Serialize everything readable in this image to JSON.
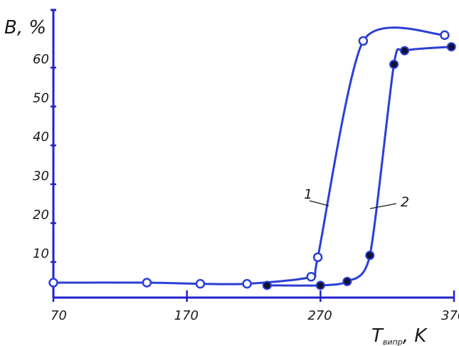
{
  "chart_data": {
    "type": "line",
    "title": "",
    "ylabel": "B, %",
    "xlabel": {
      "main": "T",
      "sub": "випр",
      "unit": ", K"
    },
    "xlim": [
      70,
      370
    ],
    "ylim": [
      0,
      70
    ],
    "x_ticks": [
      70,
      170,
      270,
      370
    ],
    "x_tick_labels": [
      "70",
      "170",
      "270",
      "370"
    ],
    "y_ticks": [
      10,
      20,
      30,
      40,
      50,
      60
    ],
    "y_tick_labels": [
      "10",
      "20",
      "30",
      "40",
      "50",
      "60"
    ],
    "grid": false,
    "legend": "none",
    "colors": {
      "axis": "#2222cc",
      "curve": "#2a3fd6",
      "text": "#1a1a1a",
      "marker_fill_2": "#111133"
    },
    "series": [
      {
        "name": "1",
        "marker": "open-circle",
        "points": [
          [
            70,
            3.5
          ],
          [
            140,
            3.5
          ],
          [
            180,
            3.2
          ],
          [
            215,
            3.2
          ],
          [
            263,
            5.0
          ],
          [
            268,
            10.0
          ],
          [
            302,
            65.5
          ],
          [
            363,
            67.0
          ]
        ]
      },
      {
        "name": "2",
        "marker": "filled-circle",
        "points": [
          [
            230,
            2.8
          ],
          [
            270,
            2.8
          ],
          [
            290,
            3.8
          ],
          [
            307,
            10.5
          ],
          [
            325,
            59.5
          ],
          [
            333,
            63.0
          ],
          [
            368,
            64.0
          ]
        ]
      }
    ],
    "curve_labels": [
      {
        "text": "1",
        "anchor": [
          262,
          31
        ]
      },
      {
        "text": "2",
        "anchor": [
          309,
          29
        ]
      }
    ]
  }
}
